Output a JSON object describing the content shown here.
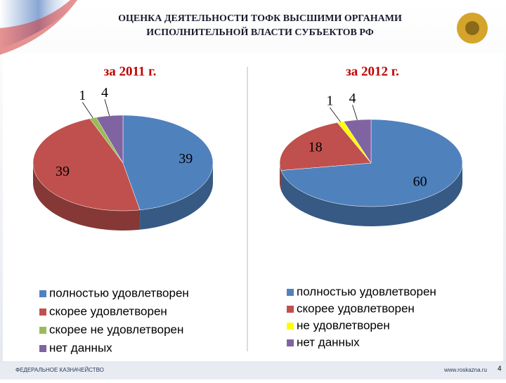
{
  "header": {
    "title_line1": "ОЦЕНКА ДЕЯТЕЛЬНОСТИ ТОФК ВЫСШИМИ ОРГАНАМИ",
    "title_line2": "ИСПОЛНИТЕЛЬНОЙ ВЛАСТИ СУБЪЕКТОВ РФ"
  },
  "footer": {
    "left": "ФЕДЕРАЛЬНОЕ КАЗНАЧЕЙСТВО",
    "right": "www.roskazna.ru",
    "page": "4"
  },
  "chart_data": [
    {
      "type": "pie",
      "title": "за 2011 г.",
      "categories": [
        "полностью удовлетворен",
        "скорее удовлетворен",
        "скорее не удовлетворен",
        "нет данных"
      ],
      "values": [
        39,
        39,
        1,
        4
      ],
      "colors": [
        "#4f81bd",
        "#c0504d",
        "#9bbb59",
        "#8064a2"
      ]
    },
    {
      "type": "pie",
      "title": "за 2012 г.",
      "categories": [
        "полностью удовлетворен",
        "скорее удовлетворен",
        "не удовлетворен",
        "нет данных"
      ],
      "values": [
        60,
        18,
        1,
        4
      ],
      "colors": [
        "#4f81bd",
        "#c0504d",
        "#ffff00",
        "#8064a2"
      ]
    }
  ]
}
